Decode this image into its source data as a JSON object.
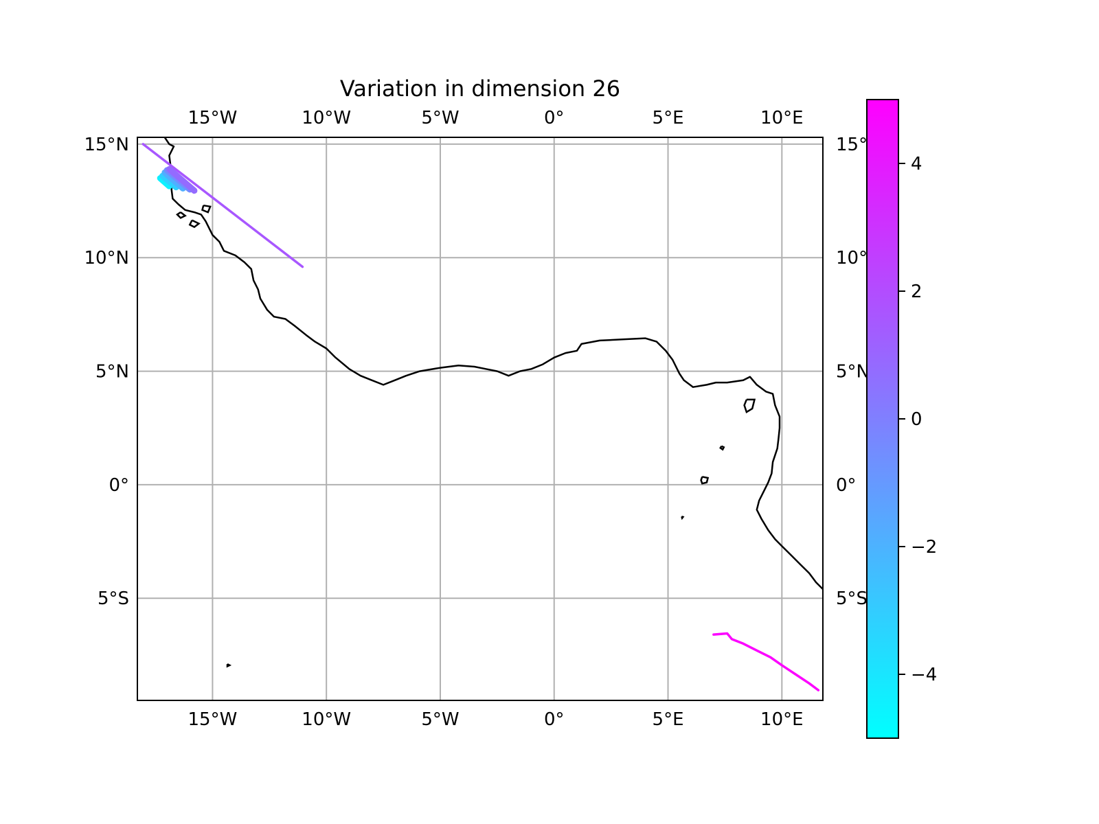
{
  "chart_data": {
    "type": "map",
    "title": "Variation in dimension 26",
    "projection": "PlateCarree",
    "lon_range": [
      -18.3,
      11.8
    ],
    "lat_range": [
      -9.5,
      15.3
    ],
    "grid": true,
    "lon_ticks": [
      {
        "value": -15,
        "label": "15°W"
      },
      {
        "value": -10,
        "label": "10°W"
      },
      {
        "value": -5,
        "label": "5°W"
      },
      {
        "value": 0,
        "label": "0°"
      },
      {
        "value": 5,
        "label": "5°E"
      },
      {
        "value": 10,
        "label": "10°E"
      }
    ],
    "lat_ticks_left": [
      {
        "value": 15,
        "label": "15°N"
      },
      {
        "value": 10,
        "label": "10°N"
      },
      {
        "value": 5,
        "label": "5°N"
      },
      {
        "value": 0,
        "label": "0°"
      },
      {
        "value": -5,
        "label": "5°S"
      }
    ],
    "lat_ticks_right": [
      {
        "value": 15,
        "label": "15°"
      },
      {
        "value": 10,
        "label": "10°"
      },
      {
        "value": 5,
        "label": "5°N"
      },
      {
        "value": 0,
        "label": "0°"
      },
      {
        "value": -5,
        "label": "5°S"
      }
    ],
    "colorbar": {
      "cmap": "cool",
      "vmin": -5,
      "vmax": 5,
      "color_min": "#00ffff",
      "color_max": "#ff00ff",
      "ticks": [
        {
          "value": 4,
          "label": "4"
        },
        {
          "value": 2,
          "label": "2"
        },
        {
          "value": 0,
          "label": "0"
        },
        {
          "value": -2,
          "label": "−2"
        },
        {
          "value": -4,
          "label": "−4"
        }
      ]
    },
    "coastline": {
      "mainland": [
        [
          -17.1,
          15.3
        ],
        [
          -16.9,
          15.0
        ],
        [
          -16.7,
          14.9
        ],
        [
          -16.9,
          14.5
        ],
        [
          -16.85,
          14.1
        ],
        [
          -16.7,
          13.6
        ],
        [
          -16.8,
          13.4
        ],
        [
          -16.8,
          13.0
        ],
        [
          -16.75,
          12.6
        ],
        [
          -16.5,
          12.35
        ],
        [
          -16.2,
          12.1
        ],
        [
          -15.8,
          12.0
        ],
        [
          -15.5,
          11.9
        ],
        [
          -15.3,
          11.6
        ],
        [
          -15.0,
          11.0
        ],
        [
          -14.7,
          10.7
        ],
        [
          -14.5,
          10.3
        ],
        [
          -14.0,
          10.1
        ],
        [
          -13.6,
          9.8
        ],
        [
          -13.3,
          9.5
        ],
        [
          -13.2,
          9.0
        ],
        [
          -13.0,
          8.6
        ],
        [
          -12.9,
          8.2
        ],
        [
          -12.6,
          7.7
        ],
        [
          -12.3,
          7.4
        ],
        [
          -11.8,
          7.3
        ],
        [
          -11.4,
          7.0
        ],
        [
          -10.9,
          6.6
        ],
        [
          -10.5,
          6.3
        ],
        [
          -10.0,
          6.0
        ],
        [
          -9.6,
          5.6
        ],
        [
          -9.0,
          5.1
        ],
        [
          -8.5,
          4.8
        ],
        [
          -8.0,
          4.6
        ],
        [
          -7.5,
          4.4
        ],
        [
          -7.0,
          4.6
        ],
        [
          -6.5,
          4.8
        ],
        [
          -5.9,
          5.0
        ],
        [
          -5.0,
          5.15
        ],
        [
          -4.2,
          5.25
        ],
        [
          -3.5,
          5.2
        ],
        [
          -3.0,
          5.1
        ],
        [
          -2.5,
          5.0
        ],
        [
          -2.0,
          4.8
        ],
        [
          -1.5,
          5.0
        ],
        [
          -1.0,
          5.1
        ],
        [
          -0.5,
          5.3
        ],
        [
          0.0,
          5.6
        ],
        [
          0.5,
          5.8
        ],
        [
          1.0,
          5.9
        ],
        [
          1.2,
          6.2
        ],
        [
          2.0,
          6.35
        ],
        [
          3.0,
          6.4
        ],
        [
          4.0,
          6.45
        ],
        [
          4.5,
          6.3
        ],
        [
          4.9,
          5.9
        ],
        [
          5.2,
          5.5
        ],
        [
          5.5,
          4.9
        ],
        [
          5.7,
          4.6
        ],
        [
          6.1,
          4.3
        ],
        [
          6.7,
          4.4
        ],
        [
          7.1,
          4.5
        ],
        [
          7.6,
          4.5
        ],
        [
          8.3,
          4.6
        ],
        [
          8.6,
          4.75
        ],
        [
          8.9,
          4.4
        ],
        [
          9.3,
          4.1
        ],
        [
          9.6,
          4.0
        ],
        [
          9.7,
          3.5
        ],
        [
          9.9,
          3.0
        ],
        [
          9.9,
          2.5
        ],
        [
          9.85,
          2.0
        ],
        [
          9.8,
          1.6
        ],
        [
          9.6,
          1.0
        ],
        [
          9.55,
          0.5
        ],
        [
          9.4,
          0.1
        ],
        [
          9.2,
          -0.3
        ],
        [
          9.0,
          -0.7
        ],
        [
          8.9,
          -1.1
        ],
        [
          9.1,
          -1.5
        ],
        [
          9.4,
          -2.0
        ],
        [
          9.7,
          -2.4
        ],
        [
          10.0,
          -2.7
        ],
        [
          10.4,
          -3.1
        ],
        [
          10.8,
          -3.5
        ],
        [
          11.2,
          -3.9
        ],
        [
          11.5,
          -4.3
        ],
        [
          11.8,
          -4.6
        ]
      ],
      "islands": [
        [
          [
            -16.4,
            12.0
          ],
          [
            -16.2,
            11.85
          ],
          [
            -16.4,
            11.75
          ],
          [
            -16.55,
            11.9
          ],
          [
            -16.4,
            12.0
          ]
        ],
        [
          [
            -15.9,
            11.65
          ],
          [
            -15.6,
            11.5
          ],
          [
            -15.8,
            11.35
          ],
          [
            -16.0,
            11.45
          ],
          [
            -15.9,
            11.65
          ]
        ],
        [
          [
            -15.4,
            12.3
          ],
          [
            -15.1,
            12.25
          ],
          [
            -15.2,
            12.0
          ],
          [
            -15.45,
            12.1
          ],
          [
            -15.4,
            12.3
          ]
        ],
        [
          [
            8.45,
            3.75
          ],
          [
            8.8,
            3.75
          ],
          [
            8.7,
            3.35
          ],
          [
            8.45,
            3.2
          ],
          [
            8.35,
            3.5
          ],
          [
            8.45,
            3.75
          ]
        ],
        [
          [
            7.35,
            1.7
          ],
          [
            7.45,
            1.65
          ],
          [
            7.4,
            1.55
          ],
          [
            7.3,
            1.62
          ],
          [
            7.35,
            1.7
          ]
        ],
        [
          [
            6.5,
            0.35
          ],
          [
            6.75,
            0.3
          ],
          [
            6.7,
            0.1
          ],
          [
            6.5,
            0.05
          ],
          [
            6.45,
            0.2
          ],
          [
            6.5,
            0.35
          ]
        ],
        [
          [
            5.6,
            -1.4
          ],
          [
            5.66,
            -1.42
          ],
          [
            5.62,
            -1.47
          ],
          [
            5.6,
            -1.4
          ]
        ],
        [
          [
            -14.35,
            -7.9
          ],
          [
            -14.25,
            -7.95
          ],
          [
            -14.35,
            -8.0
          ],
          [
            -14.35,
            -7.9
          ]
        ]
      ]
    },
    "tracks": [
      {
        "value": 1.6,
        "points": [
          [
            -18.05,
            15.0
          ],
          [
            -11.05,
            9.6
          ]
        ]
      },
      {
        "value": 4.9,
        "points": [
          [
            7.0,
            -6.6
          ],
          [
            7.6,
            -6.55
          ],
          [
            7.8,
            -6.8
          ],
          [
            8.3,
            -7.0
          ],
          [
            8.9,
            -7.3
          ],
          [
            9.5,
            -7.6
          ],
          [
            10.0,
            -7.95
          ],
          [
            10.6,
            -8.35
          ],
          [
            11.2,
            -8.75
          ],
          [
            11.6,
            -9.05
          ]
        ]
      }
    ],
    "swath": {
      "value_start": -4.5,
      "value_end": 0.8,
      "strokes": [
        [
          [
            -17.3,
            13.5
          ],
          [
            -16.9,
            13.15
          ]
        ],
        [
          [
            -17.2,
            13.6
          ],
          [
            -16.6,
            13.1
          ]
        ],
        [
          [
            -17.1,
            13.75
          ],
          [
            -16.3,
            13.05
          ]
        ],
        [
          [
            -17.0,
            13.85
          ],
          [
            -16.0,
            13.0
          ]
        ],
        [
          [
            -16.9,
            13.9
          ],
          [
            -15.8,
            12.95
          ]
        ]
      ]
    }
  }
}
